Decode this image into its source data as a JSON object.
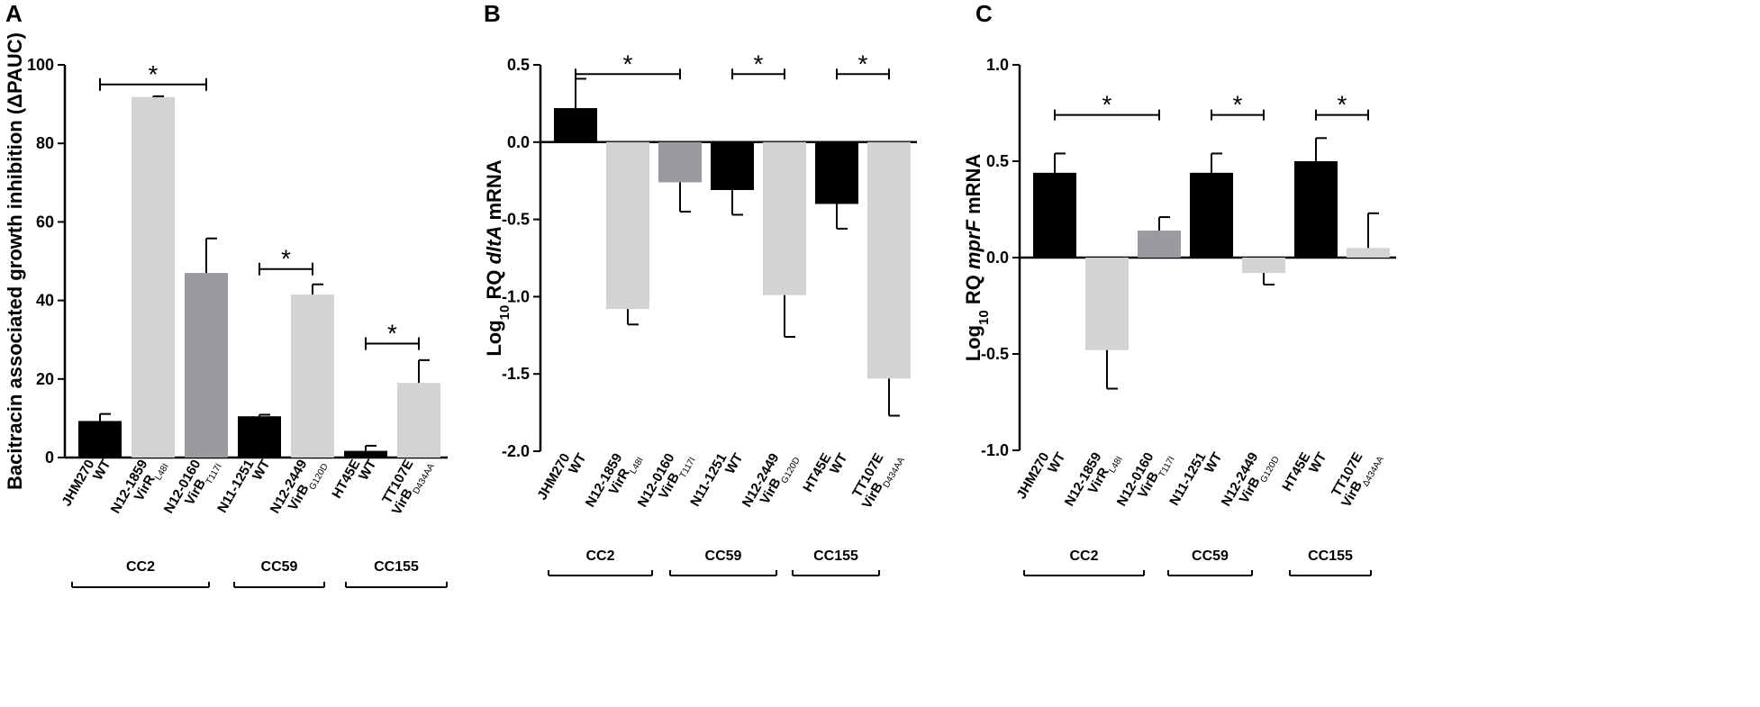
{
  "chart_data": [
    {
      "panel": "A",
      "type": "bar",
      "ylabel": "Bacitracin associated growth inhibition (ΔPAUC)",
      "ylim": [
        0,
        100
      ],
      "yticks": [
        "0",
        "20",
        "40",
        "60",
        "80",
        "100"
      ],
      "categories": [
        {
          "line1": "JHM270",
          "line2": "WT",
          "sub": ""
        },
        {
          "line1": "N12-1859",
          "line2": "VirR",
          "sub": "L48I"
        },
        {
          "line1": "N12-0160",
          "line2": "VirB",
          "sub": "T117I"
        },
        {
          "line1": "N11-1251",
          "line2": "WT",
          "sub": ""
        },
        {
          "line1": "N12-2449",
          "line2": "VirB",
          "sub": "G120D"
        },
        {
          "line1": "HT45E",
          "line2": "WT",
          "sub": ""
        },
        {
          "line1": "TT107E",
          "line2": "VirB",
          "sub": "D434AA"
        }
      ],
      "values": [
        9.3,
        91.8,
        47.0,
        10.5,
        41.5,
        1.7,
        19.0
      ],
      "errors": [
        1.8,
        0.2,
        8.8,
        0.4,
        2.6,
        1.3,
        5.8
      ],
      "colors": [
        "#000000",
        "#d3d3d3",
        "#9b9b9f",
        "#000000",
        "#d3d3d3",
        "#000000",
        "#d3d3d3"
      ],
      "significance": [
        {
          "from": 0,
          "to": 2,
          "y": 95,
          "label": "*"
        },
        {
          "from": 3,
          "to": 4,
          "y": 48,
          "label": "*"
        },
        {
          "from": 5,
          "to": 6,
          "y": 29,
          "label": "*"
        }
      ],
      "groups": [
        "CC2",
        "CC59",
        "CC155"
      ]
    },
    {
      "panel": "B",
      "type": "bar",
      "ylabel_prefix": "Log",
      "ylabel_sub": "10",
      "ylabel_mid": " RQ ",
      "ylabel_gene": "dltA",
      "ylabel_suffix": " mRNA",
      "ylim": [
        -2.0,
        0.5
      ],
      "yticks": [
        "-2.0",
        "-1.5",
        "-1.0",
        "-0.5",
        "0.0",
        "0.5"
      ],
      "categories": [
        {
          "line1": "JHM270",
          "line2": "WT",
          "sub": ""
        },
        {
          "line1": "N12-1859",
          "line2": "VirR",
          "sub": "L48I"
        },
        {
          "line1": "N12-0160",
          "line2": "VirB",
          "sub": "T117I"
        },
        {
          "line1": "N11-1251",
          "line2": "WT",
          "sub": ""
        },
        {
          "line1": "N12-2449",
          "line2": "VirB",
          "sub": "G120D"
        },
        {
          "line1": "HT45E",
          "line2": "WT",
          "sub": ""
        },
        {
          "line1": "TT107E",
          "line2": "VirB",
          "sub": "D434AA"
        }
      ],
      "values": [
        0.22,
        -1.08,
        -0.26,
        -0.31,
        -0.99,
        -0.4,
        -1.53
      ],
      "errors": [
        0.19,
        0.1,
        0.19,
        0.16,
        0.27,
        0.16,
        0.24
      ],
      "colors": [
        "#000000",
        "#d3d3d3",
        "#9b9b9f",
        "#000000",
        "#d3d3d3",
        "#000000",
        "#d3d3d3"
      ],
      "significance": [
        {
          "from": 0,
          "to": 2,
          "y": 0.44,
          "label": "*"
        },
        {
          "from": 3,
          "to": 4,
          "y": 0.44,
          "label": "*"
        },
        {
          "from": 5,
          "to": 6,
          "y": 0.44,
          "label": "*"
        }
      ],
      "groups": [
        "CC2",
        "CC59",
        "CC155"
      ]
    },
    {
      "panel": "C",
      "type": "bar",
      "ylabel_prefix": "Log",
      "ylabel_sub": "10",
      "ylabel_mid": " RQ ",
      "ylabel_gene": "mprF",
      "ylabel_suffix": " mRNA",
      "ylim": [
        -1.0,
        1.0
      ],
      "yticks": [
        "-1.0",
        "-0.5",
        "0.0",
        "0.5",
        "1.0"
      ],
      "categories": [
        {
          "line1": "JHM270",
          "line2": "WT",
          "sub": ""
        },
        {
          "line1": "N12-1859",
          "line2": "VirR",
          "sub": "L48I"
        },
        {
          "line1": "N12-0160",
          "line2": "VirB",
          "sub": "T117I"
        },
        {
          "line1": "N11-1251",
          "line2": "WT",
          "sub": ""
        },
        {
          "line1": "N12-2449",
          "line2": "VirB",
          "sub": "G120D"
        },
        {
          "line1": "HT45E",
          "line2": "WT",
          "sub": ""
        },
        {
          "line1": "TT107E",
          "line2": "VirB",
          "sub": "Δ434AA"
        }
      ],
      "values": [
        0.44,
        -0.48,
        0.14,
        0.44,
        -0.08,
        0.5,
        0.05
      ],
      "errors": [
        0.1,
        0.2,
        0.07,
        0.1,
        0.06,
        0.12,
        0.18
      ],
      "colors": [
        "#000000",
        "#d3d3d3",
        "#9b9b9f",
        "#000000",
        "#d3d3d3",
        "#000000",
        "#d3d3d3"
      ],
      "significance": [
        {
          "from": 0,
          "to": 2,
          "y": 0.74,
          "label": "*"
        },
        {
          "from": 3,
          "to": 4,
          "y": 0.74,
          "label": "*"
        },
        {
          "from": 5,
          "to": 6,
          "y": 0.74,
          "label": "*"
        }
      ],
      "groups": [
        "CC2",
        "CC59",
        "CC155"
      ]
    }
  ]
}
